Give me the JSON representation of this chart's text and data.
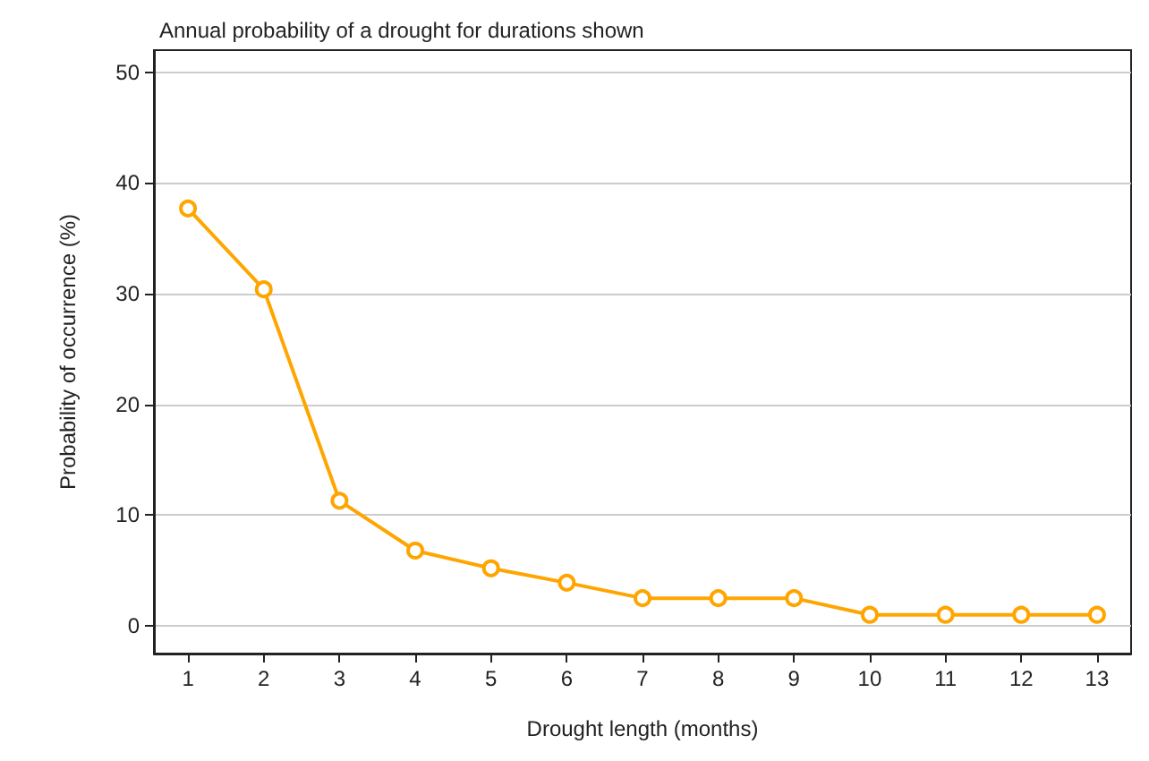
{
  "chart_data": {
    "type": "line",
    "title": "Annual probability of a drought for durations shown",
    "xlabel": "Drought length (months)",
    "ylabel": "Probability of occurrence (%)",
    "x": [
      1,
      2,
      3,
      4,
      5,
      6,
      7,
      8,
      9,
      10,
      11,
      12,
      13
    ],
    "series": [
      {
        "color": "#ffa500",
        "values": [
          37.7,
          30.4,
          11.3,
          6.8,
          5.2,
          3.9,
          2.5,
          2.5,
          2.5,
          1.0,
          1.0,
          1.0,
          1.0
        ]
      }
    ],
    "xlim": [
      0.55,
      13.45
    ],
    "xticks": [
      1,
      2,
      3,
      4,
      5,
      6,
      7,
      8,
      9,
      10,
      11,
      12,
      13
    ],
    "ylim": [
      -2.5,
      52
    ],
    "yticks": [
      0,
      10,
      20,
      30,
      40,
      50
    ],
    "grid": "y",
    "marker": "circle",
    "line_style": "solid"
  }
}
